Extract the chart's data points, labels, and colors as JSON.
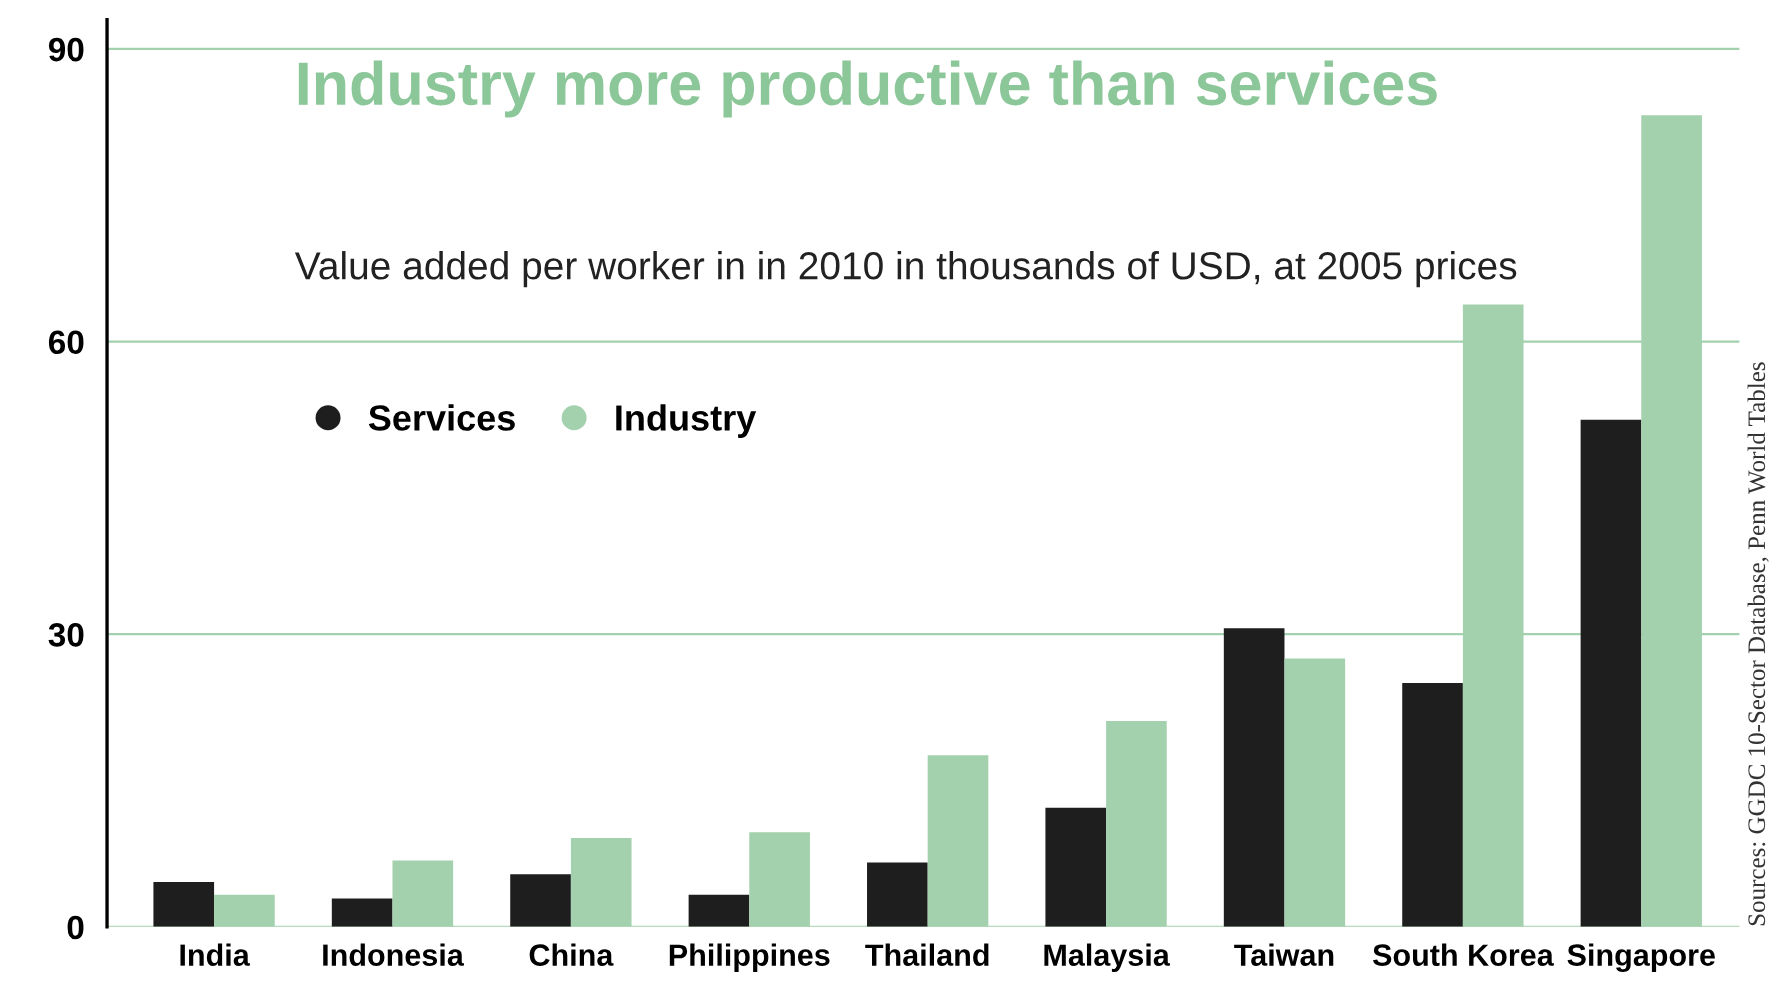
{
  "chart_data": {
    "type": "bar",
    "title": "Industry more productive than services",
    "subtitle": "Value added per worker in in 2010 in thousands of USD, at 2005 prices",
    "categories": [
      "India",
      "Indonesia",
      "China",
      "Philippines",
      "Thailand",
      "Malaysia",
      "Taiwan",
      "South Korea",
      "Singapore"
    ],
    "series": [
      {
        "name": "Services",
        "color": "#1e1e1e",
        "values": [
          4.6,
          2.9,
          5.4,
          3.3,
          6.6,
          12.2,
          30.6,
          25,
          52
        ]
      },
      {
        "name": "Industry",
        "color": "#a3d1ad",
        "values": [
          3.3,
          6.8,
          9.1,
          9.7,
          17.6,
          21.1,
          27.5,
          63.8,
          83.2
        ]
      }
    ],
    "ylim": [
      0,
      93
    ],
    "yticks": [
      0,
      30,
      60,
      90
    ],
    "grid": "y",
    "legend": "top left",
    "marker": "circle",
    "annotations": [
      "Sources: GGDC 10-Sector Database, Penn World Tables"
    ]
  }
}
